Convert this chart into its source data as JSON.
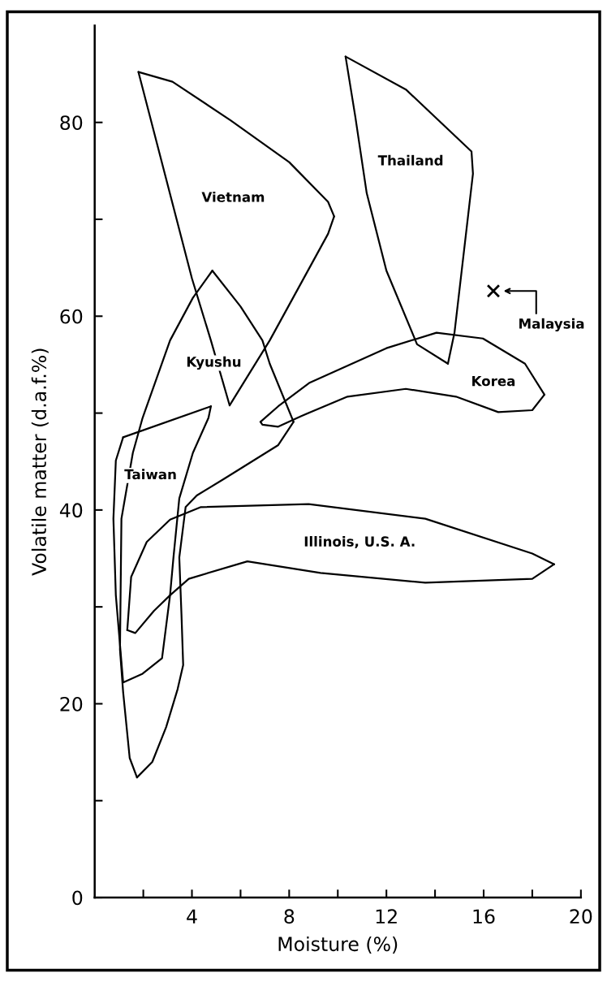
{
  "chart_data": {
    "type": "line",
    "xlabel": "Moisture (%)",
    "ylabel": "Volatile matter (d.a.f.%)",
    "xlim": [
      0,
      20
    ],
    "ylim": [
      0,
      90
    ],
    "xticks": [
      {
        "value": 2,
        "label": null
      },
      4,
      {
        "value": 6,
        "label": null
      },
      8,
      {
        "value": 10,
        "label": null
      },
      12,
      {
        "value": 14,
        "label": null
      },
      16,
      {
        "value": 18,
        "label": null
      },
      20
    ],
    "yticks": [
      0,
      {
        "value": 10,
        "label": null
      },
      20,
      {
        "value": 30,
        "label": null
      },
      40,
      {
        "value": 50,
        "label": null
      },
      60,
      {
        "value": 70,
        "label": null
      },
      80
    ],
    "grid": false,
    "legend": false,
    "line_style": "solid",
    "marker": "none",
    "series": [
      {
        "color": "#000000",
        "x": [
          1.8,
          3.2,
          5.6,
          8.0,
          9.6,
          9.85
        ],
        "values": [
          85.2,
          84.2,
          80.2,
          75.9,
          71.8,
          70.3
        ]
      },
      {
        "color": "#000000",
        "x": [
          5.55,
          7.2,
          9.6,
          9.85
        ],
        "values": [
          50.8,
          57.5,
          68.5,
          70.3
        ]
      },
      {
        "color": "#000000",
        "x": [
          1.8,
          4.0,
          4.78,
          5.55
        ],
        "values": [
          85.2,
          63.9,
          57.5,
          50.8
        ]
      },
      {
        "color": "#000000",
        "x": [
          10.32,
          12.8,
          15.5,
          15.56,
          14.8,
          14.53
        ],
        "values": [
          86.8,
          83.4,
          77.0,
          74.7,
          58.3,
          55.1
        ]
      },
      {
        "color": "#000000",
        "x": [
          10.32,
          10.72,
          11.19,
          12.0,
          13.26,
          14.53
        ],
        "values": [
          86.8,
          80.6,
          72.7,
          64.7,
          57.1,
          55.1
        ]
      },
      {
        "color": "#000000",
        "x": [
          4.84,
          6.0,
          6.9,
          7.2,
          8.18
        ],
        "values": [
          64.7,
          61.0,
          57.5,
          55.1,
          49.1
        ]
      },
      {
        "color": "#000000",
        "x": [
          1.74,
          2.37,
          2.94,
          3.41,
          3.64,
          3.57,
          3.48,
          3.74,
          4.2,
          5.31,
          7.55,
          8.18
        ],
        "values": [
          12.4,
          14.0,
          17.6,
          21.5,
          24.0,
          29.2,
          35.1,
          40.3,
          41.5,
          43.2,
          46.7,
          49.1
        ]
      },
      {
        "color": "#000000",
        "x": [
          1.74,
          1.44,
          1.17,
          1.04,
          1.1,
          1.57,
          1.97,
          3.1,
          4.04,
          4.84
        ],
        "values": [
          12.4,
          14.4,
          21.2,
          25.6,
          39.1,
          45.9,
          49.5,
          57.5,
          61.9,
          64.7
        ]
      },
      {
        "color": "#000000",
        "x": [
          1.17,
          4.78
        ],
        "values": [
          47.5,
          50.7
        ]
      },
      {
        "color": "#000000",
        "x": [
          1.17,
          0.87,
          0.77,
          0.87,
          1.17,
          1.97,
          2.77,
          3.1,
          3.24,
          3.48,
          4.04,
          4.68,
          4.78
        ],
        "values": [
          47.5,
          45.1,
          39.1,
          31.2,
          22.2,
          23.1,
          24.7,
          31.2,
          35.1,
          41.2,
          45.9,
          49.5,
          50.7
        ]
      },
      {
        "color": "#000000",
        "x": [
          1.34,
          1.5,
          2.14,
          3.1,
          4.37,
          8.8,
          13.6,
          18.0,
          18.9
        ],
        "values": [
          27.6,
          33.1,
          36.7,
          39.0,
          40.3,
          40.6,
          39.1,
          35.5,
          34.4
        ]
      },
      {
        "color": "#000000",
        "x": [
          1.34,
          1.67,
          2.44,
          3.1,
          3.87,
          6.28,
          9.29,
          13.6,
          18.0,
          18.9
        ],
        "values": [
          27.6,
          27.3,
          29.6,
          31.2,
          32.9,
          34.7,
          33.5,
          32.5,
          32.9,
          34.4
        ]
      },
      {
        "color": "#000000",
        "x": [
          6.82,
          7.55,
          8.82,
          12.0,
          14.06,
          15.97,
          17.7,
          18.5
        ],
        "values": [
          49.1,
          50.7,
          53.1,
          56.7,
          58.3,
          57.7,
          55.1,
          51.9
        ]
      },
      {
        "color": "#000000",
        "x": [
          6.82,
          6.9,
          7.55,
          8.5,
          10.4,
          12.8,
          14.86,
          16.6,
          18.0,
          18.5
        ],
        "values": [
          49.1,
          48.8,
          48.6,
          49.7,
          51.7,
          52.5,
          51.7,
          50.1,
          50.3,
          51.9
        ]
      },
      {
        "type": "scatter",
        "marker": "cross",
        "color": "#000000",
        "x": [
          16.4
        ],
        "values": [
          62.6
        ]
      }
    ],
    "annotations": [
      "Vietnam",
      "Thailand",
      "Kyushu",
      "Taiwan",
      "Korea",
      "Illinois, U.S. A.",
      {
        "text": "Malaysia",
        "x": 16.4,
        "y": 62.6
      }
    ]
  }
}
